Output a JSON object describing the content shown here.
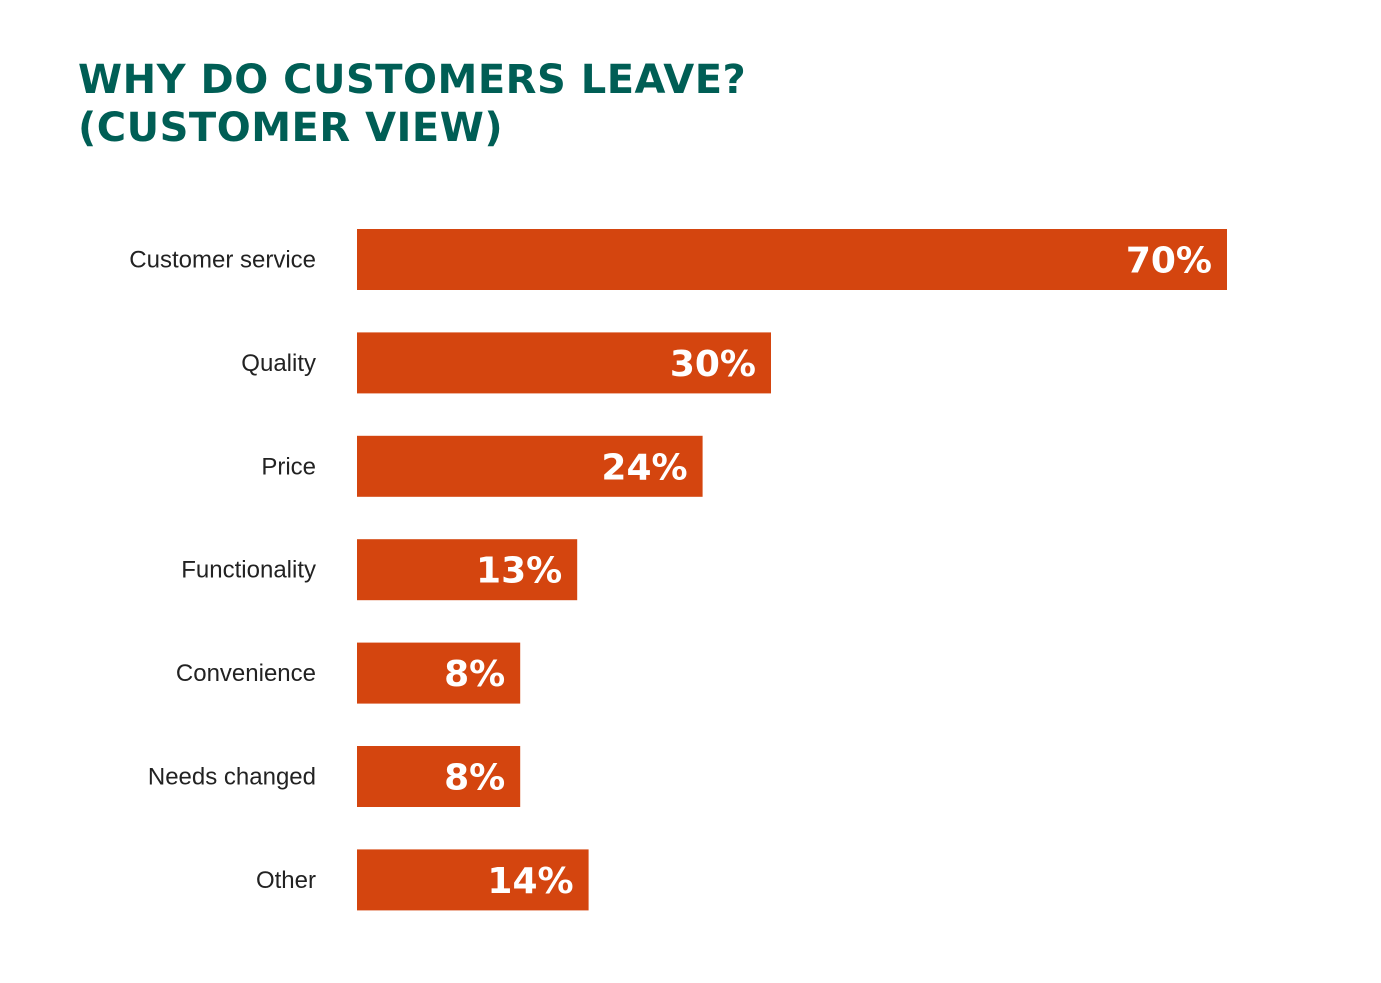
{
  "chart_data": {
    "type": "bar",
    "orientation": "horizontal",
    "title": "WHY DO CUSTOMERS LEAVE? (CUSTOMER VIEW)",
    "title_lines": [
      "WHY DO CUSTOMERS LEAVE?",
      "(CUSTOMER VIEW)"
    ],
    "categories": [
      "Customer service",
      "Quality",
      "Price",
      "Functionality",
      "Convenience",
      "Needs changed",
      "Other"
    ],
    "values": [
      70,
      30,
      24,
      13,
      8,
      8,
      14
    ],
    "data_labels": [
      "70%",
      "30%",
      "24%",
      "13%",
      "8%",
      "8%",
      "14%"
    ],
    "unit": "%",
    "xlabel": "",
    "ylabel": "",
    "grid": false,
    "legend": "none",
    "colors": {
      "bar": "#d4450f",
      "title": "#005e55",
      "label": "#222222",
      "value_label": "#ffffff"
    }
  }
}
